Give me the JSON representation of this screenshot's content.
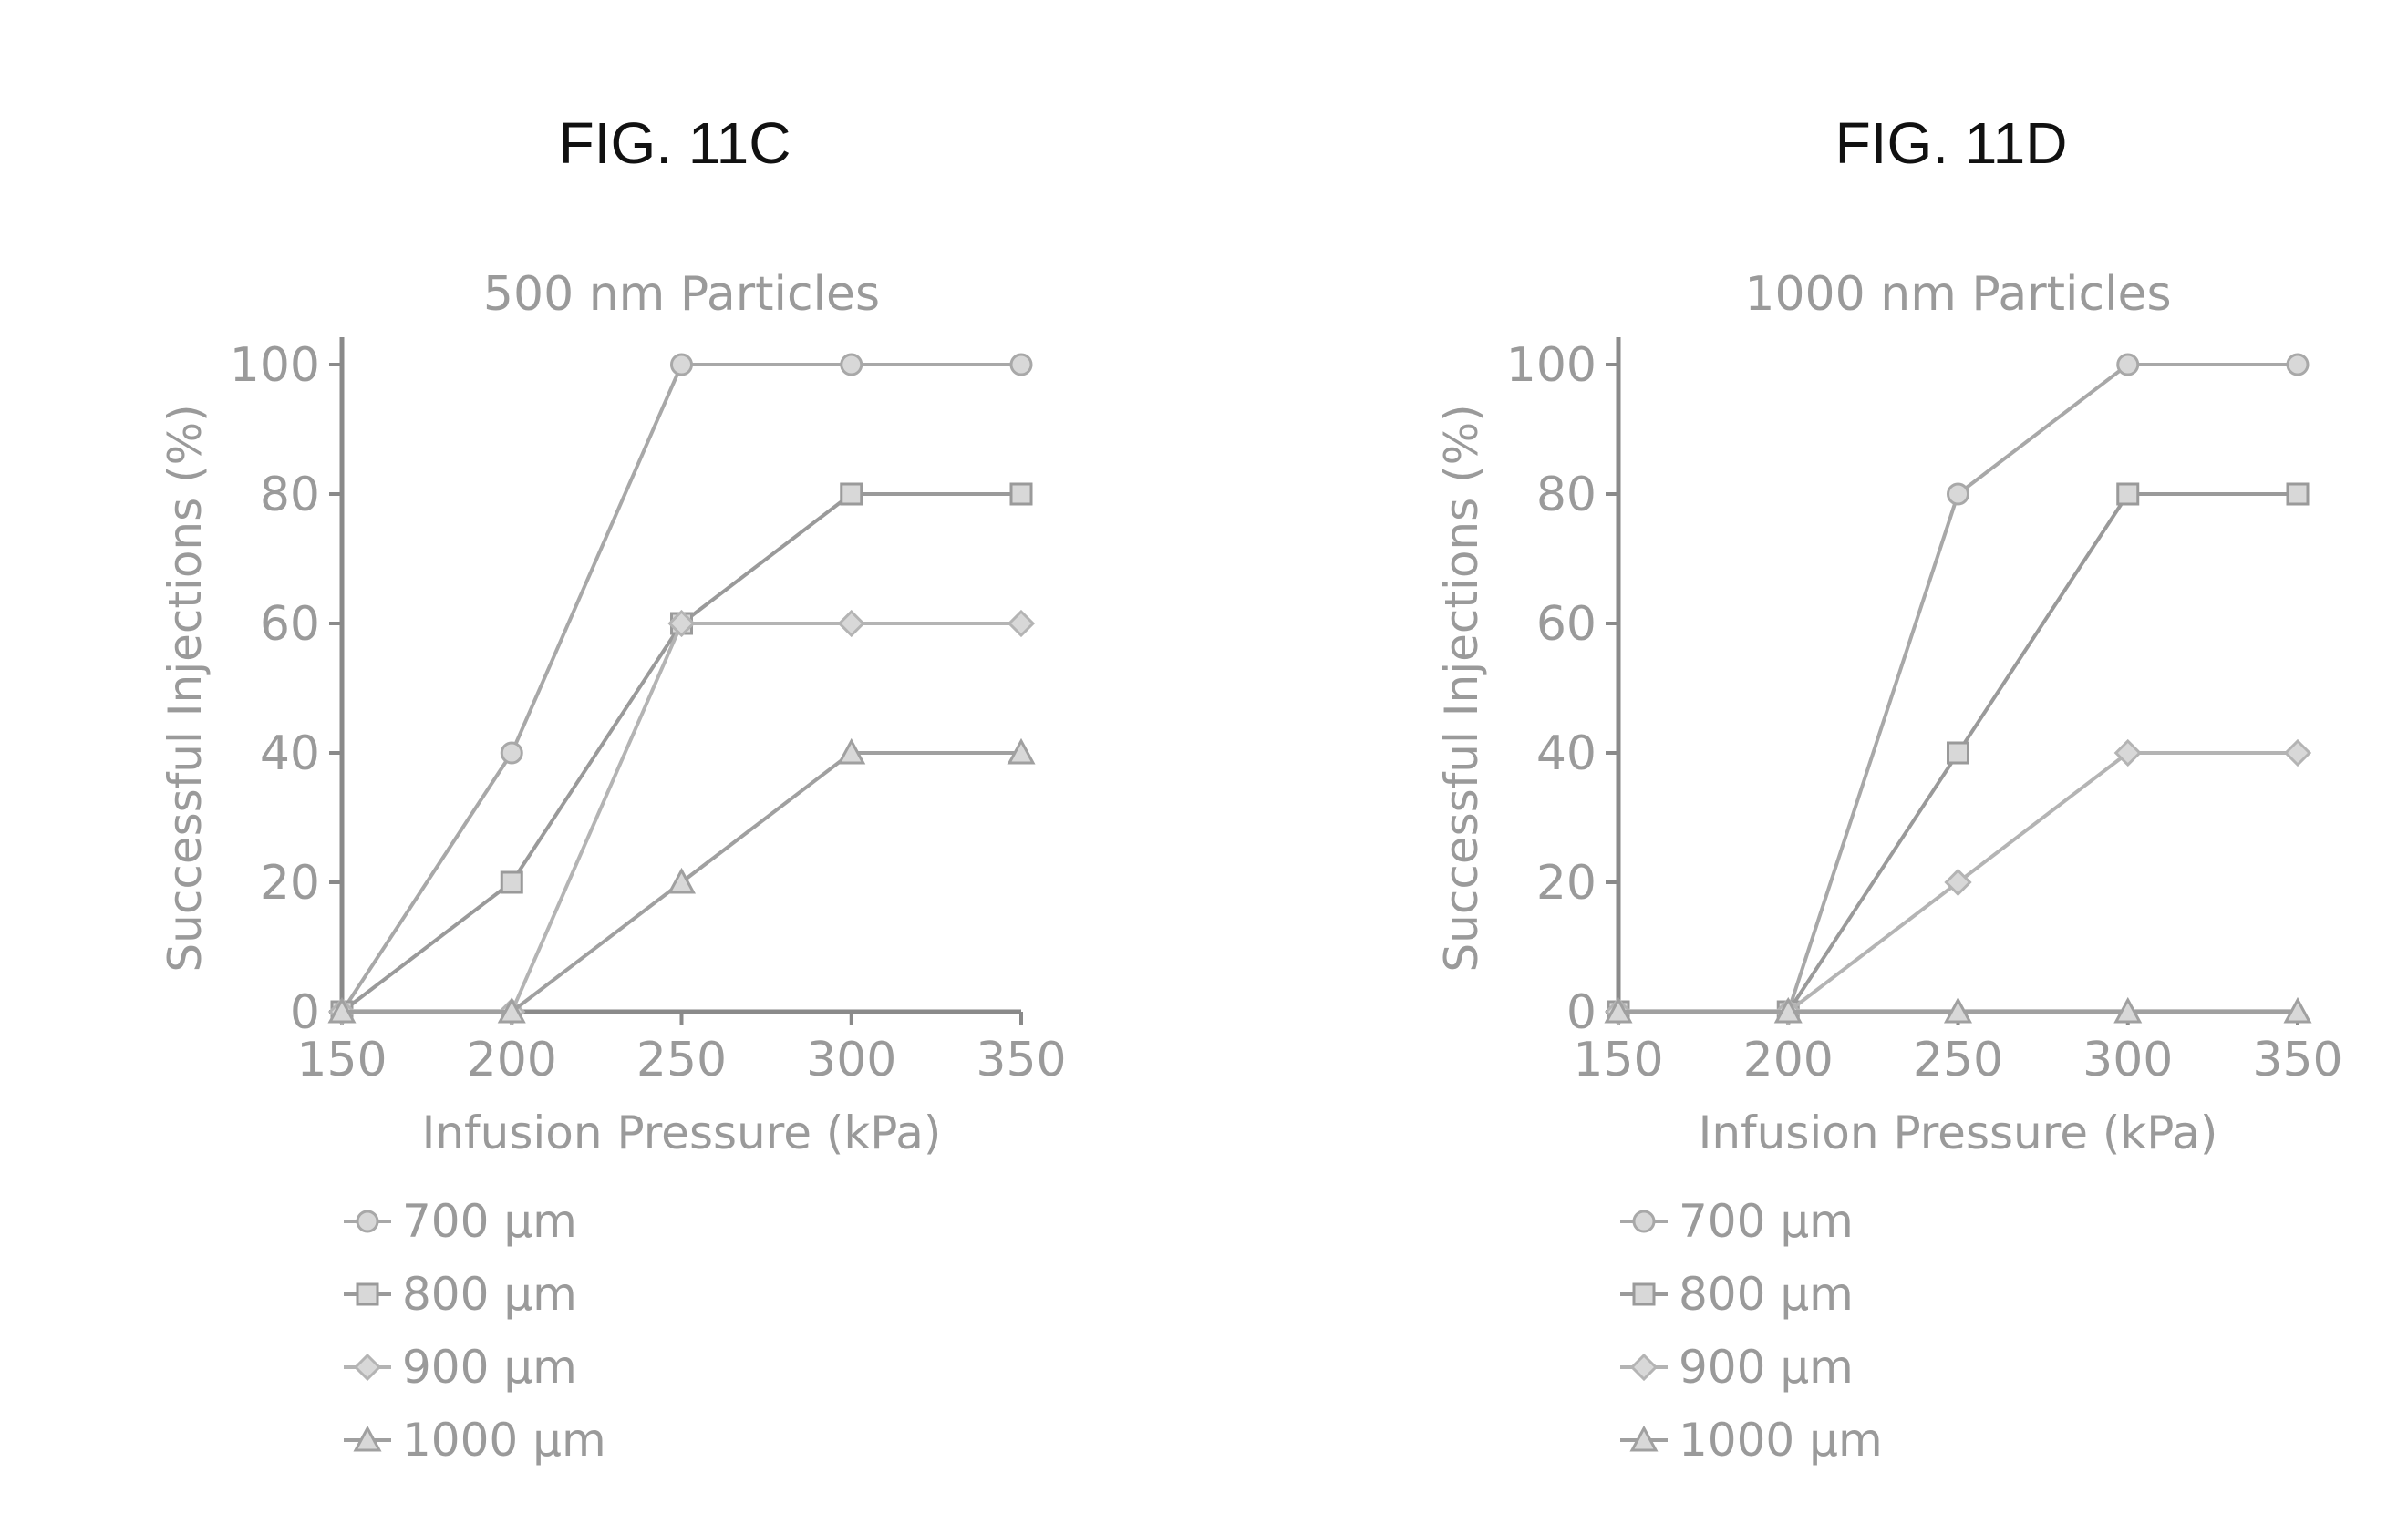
{
  "page": {
    "fig_labels": [
      "FIG. 11C",
      "FIG. 11D"
    ]
  },
  "chart_data": [
    {
      "type": "line",
      "title": "500 nm Particles",
      "xlabel": "Infusion Pressure (kPa)",
      "ylabel": "Successful Injections (%)",
      "x": [
        150,
        200,
        250,
        300,
        350
      ],
      "xlim": [
        150,
        350
      ],
      "ylim": [
        0,
        100
      ],
      "xticks": [
        150,
        200,
        250,
        300,
        350
      ],
      "yticks": [
        0,
        20,
        40,
        60,
        80,
        100
      ],
      "grid": false,
      "legend_position": "bottom-left",
      "colors": [
        "#a8a8a8",
        "#9a9a9a",
        "#b4b4b4",
        "#a0a0a0"
      ],
      "series": [
        {
          "name": "700 µm",
          "values": [
            0,
            40,
            100,
            100,
            100
          ]
        },
        {
          "name": "800 µm",
          "values": [
            0,
            20,
            60,
            80,
            80
          ]
        },
        {
          "name": "900 µm",
          "values": [
            0,
            0,
            60,
            60,
            60
          ]
        },
        {
          "name": "1000 µm",
          "values": [
            0,
            0,
            20,
            40,
            40
          ]
        }
      ]
    },
    {
      "type": "line",
      "title": "1000 nm Particles",
      "xlabel": "Infusion Pressure (kPa)",
      "ylabel": "Successful Injections (%)",
      "x": [
        150,
        200,
        250,
        300,
        350
      ],
      "xlim": [
        150,
        350
      ],
      "ylim": [
        0,
        100
      ],
      "xticks": [
        150,
        200,
        250,
        300,
        350
      ],
      "yticks": [
        0,
        20,
        40,
        60,
        80,
        100
      ],
      "grid": false,
      "legend_position": "bottom-left",
      "colors": [
        "#a8a8a8",
        "#9a9a9a",
        "#b4b4b4",
        "#a0a0a0"
      ],
      "series": [
        {
          "name": "700 µm",
          "values": [
            0,
            0,
            80,
            100,
            100
          ]
        },
        {
          "name": "800 µm",
          "values": [
            0,
            0,
            40,
            80,
            80
          ]
        },
        {
          "name": "900 µm",
          "values": [
            0,
            0,
            20,
            40,
            40
          ]
        },
        {
          "name": "1000 µm",
          "values": [
            0,
            0,
            0,
            0,
            0
          ]
        }
      ]
    }
  ]
}
